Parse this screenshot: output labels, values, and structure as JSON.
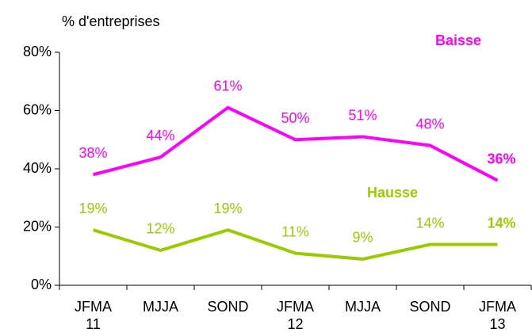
{
  "chart_data": {
    "type": "line",
    "y_axis_label": "% d'entreprises",
    "categories": [
      "JFMA 11",
      "MJJA",
      "SOND",
      "JFMA 12",
      "MJJA",
      "SOND",
      "JFMA 13"
    ],
    "series": [
      {
        "name": "Baisse",
        "color": "#ff00ff",
        "values": [
          38,
          44,
          61,
          50,
          51,
          48,
          36
        ],
        "value_labels": [
          "38%",
          "44%",
          "61%",
          "50%",
          "51%",
          "48%",
          "36%"
        ]
      },
      {
        "name": "Hausse",
        "color": "#99cc00",
        "values": [
          19,
          12,
          19,
          11,
          9,
          14,
          14
        ],
        "value_labels": [
          "19%",
          "12%",
          "19%",
          "11%",
          "9%",
          "14%",
          "14%"
        ]
      }
    ],
    "ylim": [
      0,
      80
    ],
    "yticks": [
      {
        "value": 0,
        "label": "0%"
      },
      {
        "value": 20,
        "label": "20%"
      },
      {
        "value": 40,
        "label": "40%"
      },
      {
        "value": 60,
        "label": "60%"
      },
      {
        "value": 80,
        "label": "80%"
      }
    ]
  }
}
